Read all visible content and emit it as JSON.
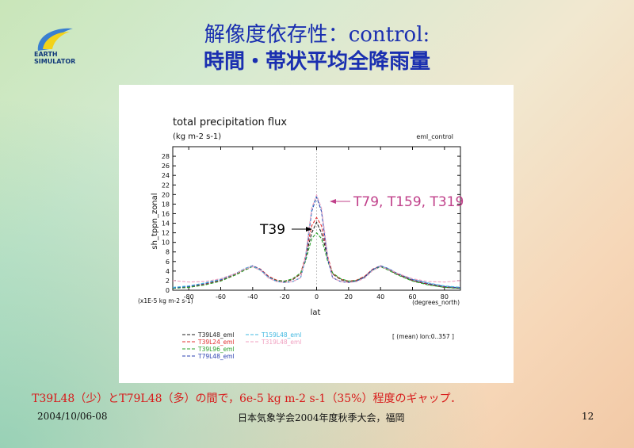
{
  "slide": {
    "title_line1": "解像度依存性：control:",
    "title_line2": "時間・帯状平均全降雨量",
    "logo_line1": "EARTH",
    "logo_line2": "SIMULATOR",
    "caption": "T39L48（少）とT79L48（多）の間で，6e-5 kg m-2 s-1（35%）程度のギャップ．",
    "footer_date": "2004/10/06-08",
    "footer_conference": "日本気象学会2004年度秋季大会，福岡",
    "page_number": "12",
    "accent_color": "#1a2fb0",
    "caption_color": "#d81a1a"
  },
  "chart_data": {
    "type": "line",
    "title": "total precipitation flux",
    "subtitle": "(kg m-2 s-1)",
    "top_right_label": "eml_control",
    "xlabel": "lat",
    "x_unit_label": "(degrees_north)",
    "ylabel": "sh_tppn_zonal",
    "y_scale_label": "(x1E-5 kg m-2 s-1)",
    "averaging_note": "[ (mean) lon:0..357 ]",
    "xlim": [
      -90,
      90
    ],
    "ylim": [
      0,
      30
    ],
    "xticks": [
      -80,
      -60,
      -40,
      -20,
      0,
      20,
      40,
      60,
      80
    ],
    "yticks": [
      0,
      2,
      4,
      6,
      8,
      10,
      12,
      14,
      16,
      18,
      20,
      22,
      24,
      26,
      28
    ],
    "x": [
      -90,
      -80,
      -70,
      -60,
      -50,
      -45,
      -40,
      -35,
      -30,
      -25,
      -20,
      -15,
      -10,
      -7,
      -5,
      -3,
      0,
      3,
      5,
      7,
      10,
      15,
      20,
      25,
      30,
      35,
      40,
      45,
      50,
      60,
      70,
      80,
      90
    ],
    "series": [
      {
        "name": "T39L48_eml",
        "color": "#222222",
        "values": [
          0.4,
          0.6,
          1.2,
          2.0,
          3.4,
          4.3,
          5.0,
          4.3,
          2.8,
          2.0,
          1.8,
          2.2,
          3.4,
          6.5,
          9.5,
          12.0,
          14.2,
          12.0,
          9.5,
          6.5,
          3.4,
          2.2,
          1.8,
          2.0,
          2.8,
          4.3,
          5.0,
          4.3,
          3.4,
          2.0,
          1.2,
          0.6,
          0.4
        ]
      },
      {
        "name": "T39L24_eml",
        "color": "#e03030",
        "values": [
          0.5,
          0.7,
          1.3,
          2.1,
          3.5,
          4.4,
          5.1,
          4.4,
          2.9,
          2.1,
          1.9,
          2.3,
          3.5,
          7.0,
          10.5,
          13.5,
          15.2,
          13.5,
          10.5,
          7.0,
          3.5,
          2.3,
          1.9,
          2.1,
          2.9,
          4.4,
          5.1,
          4.4,
          3.5,
          2.1,
          1.3,
          0.7,
          0.5
        ]
      },
      {
        "name": "T39L96_eml",
        "color": "#2aa02a",
        "values": [
          0.4,
          0.6,
          1.1,
          1.9,
          3.3,
          4.2,
          4.9,
          4.2,
          2.7,
          2.0,
          1.9,
          2.4,
          3.6,
          6.0,
          8.5,
          10.8,
          12.0,
          10.8,
          8.5,
          6.0,
          3.6,
          2.4,
          1.9,
          2.0,
          2.7,
          4.2,
          4.9,
          4.2,
          3.3,
          1.9,
          1.1,
          0.6,
          0.4
        ]
      },
      {
        "name": "T79L48_eml",
        "color": "#2a3fb0",
        "values": [
          0.5,
          0.8,
          1.4,
          2.2,
          3.6,
          4.5,
          5.1,
          4.3,
          2.7,
          1.9,
          1.6,
          1.8,
          2.6,
          6.5,
          11.5,
          16.5,
          19.5,
          16.5,
          11.5,
          6.5,
          2.6,
          1.8,
          1.6,
          1.9,
          2.7,
          4.3,
          5.1,
          4.5,
          3.6,
          2.2,
          1.4,
          0.8,
          0.5
        ]
      },
      {
        "name": "T159L48_eml",
        "color": "#40b8e0",
        "values": [
          0.6,
          0.9,
          1.5,
          2.3,
          3.6,
          4.5,
          5.0,
          4.2,
          2.6,
          1.8,
          1.6,
          1.8,
          2.6,
          6.8,
          12.0,
          17.0,
          19.8,
          17.0,
          12.0,
          6.8,
          2.6,
          1.8,
          1.6,
          1.8,
          2.6,
          4.2,
          5.0,
          4.5,
          3.6,
          2.3,
          1.5,
          0.9,
          0.6
        ]
      },
      {
        "name": "T319L48_eml",
        "color": "#f0a0c0",
        "values": [
          2.0,
          1.7,
          1.8,
          2.4,
          3.6,
          4.4,
          4.9,
          4.1,
          2.5,
          1.8,
          1.6,
          1.8,
          2.6,
          7.0,
          12.2,
          17.2,
          19.9,
          17.2,
          12.2,
          7.0,
          2.6,
          1.8,
          1.6,
          1.8,
          2.5,
          4.1,
          4.9,
          4.4,
          3.6,
          2.4,
          1.8,
          1.7,
          2.0
        ]
      }
    ],
    "annotations": [
      {
        "text": "T79, T159, T319",
        "color": "#c0408a"
      },
      {
        "text": "T39",
        "color": "#000000"
      }
    ]
  }
}
